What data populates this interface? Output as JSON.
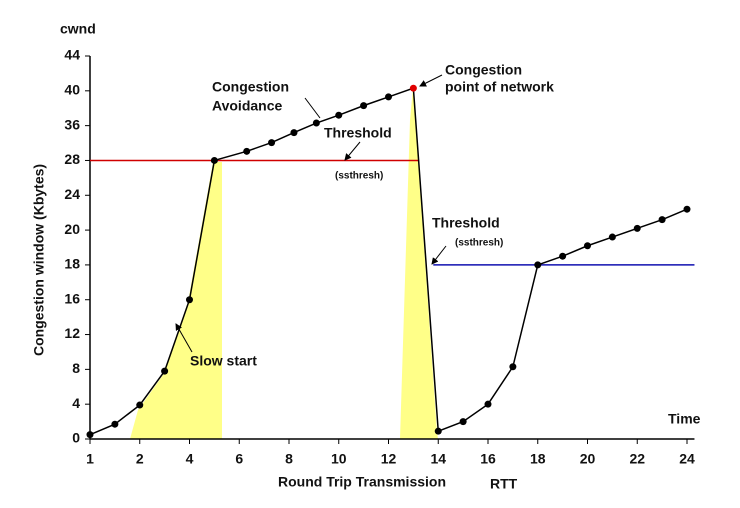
{
  "chart_data": {
    "type": "line",
    "y_unit_label": "cwnd",
    "ylabel": "Congestion window (Kbytes)",
    "xlabel": "Round Trip Transmission",
    "xlabel_suffix": "RTT",
    "x_unit_label": "Time",
    "x": [
      1,
      1.5,
      2,
      3,
      4,
      5,
      6.3,
      7.3,
      8.2,
      9.1,
      10,
      11,
      12,
      13,
      14,
      15,
      16,
      17,
      18,
      19,
      20,
      21,
      22,
      23,
      24
    ],
    "values": [
      0.5,
      1.7,
      3.9,
      7.8,
      16,
      28,
      30.1,
      32.1,
      34.4,
      36.3,
      37.2,
      38.3,
      39.3,
      40.3,
      0.9,
      2,
      4,
      8.3,
      18,
      18.5,
      19.1,
      19.6,
      20.2,
      21.2,
      22.4
    ],
    "color": "#000000",
    "peak_color": "#e00000",
    "thresholds": [
      {
        "value": 28,
        "x": [
          1,
          13.2
        ],
        "color": "#d00000"
      },
      {
        "value": 18,
        "x": [
          13.8,
          24.3
        ],
        "color": "#1010b0"
      }
    ],
    "xlim": [
      1,
      24.3
    ],
    "ylim": [
      0,
      44
    ],
    "xticks": [
      1,
      2,
      4,
      6,
      8,
      10,
      12,
      14,
      16,
      18,
      20,
      22,
      24
    ],
    "yticks": [
      0,
      4,
      8,
      12,
      16,
      18,
      20,
      24,
      28,
      36,
      40,
      44
    ],
    "annotations": {
      "avoidance": [
        "Congestion",
        "Avoidance"
      ],
      "congestion_point": [
        "Congestion",
        "point of network"
      ],
      "threshold1": [
        "Threshold",
        "(ssthresh)"
      ],
      "threshold2": [
        "Threshold",
        "(ssthresh)"
      ],
      "slow_start": "Slow start"
    }
  }
}
